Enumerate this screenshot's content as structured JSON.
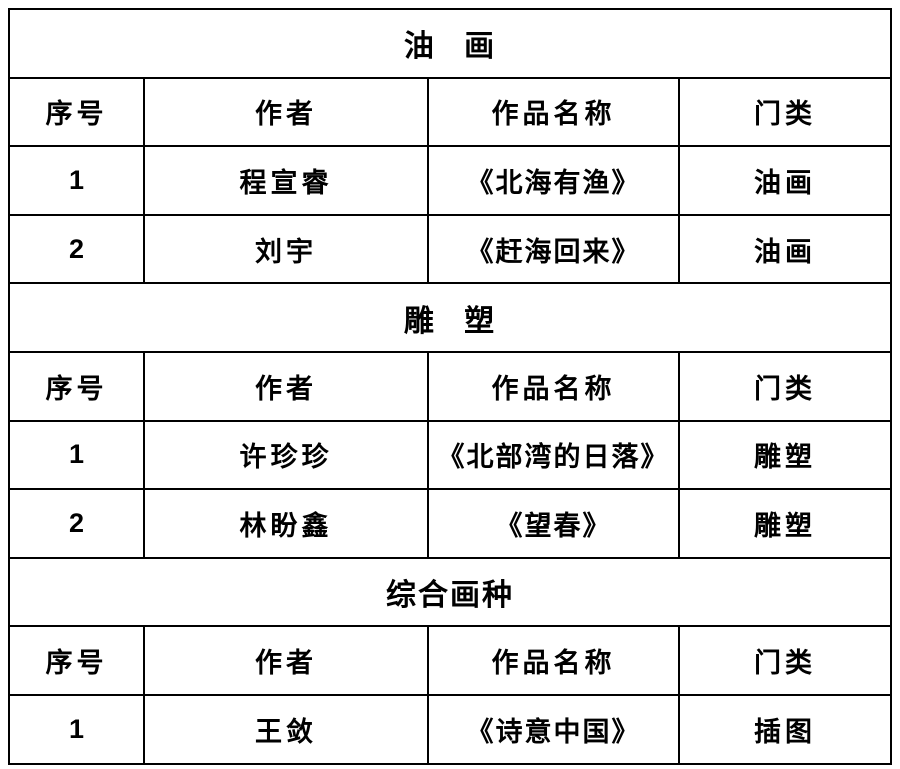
{
  "colors": {
    "text": "#000000",
    "border": "#000000",
    "background": "#ffffff"
  },
  "table": {
    "columns": [
      "序号",
      "作者",
      "作品名称",
      "门类"
    ],
    "sections": [
      {
        "title": "油 画",
        "rows": [
          {
            "no": "1",
            "author": "程宣睿",
            "work": "《北海有渔》",
            "category": "油画"
          },
          {
            "no": "2",
            "author": "刘宇",
            "work": "《赶海回来》",
            "category": "油画"
          }
        ]
      },
      {
        "title": "雕 塑",
        "rows": [
          {
            "no": "1",
            "author": "许珍珍",
            "work": "《北部湾的日落》",
            "category": "雕塑"
          },
          {
            "no": "2",
            "author": "林盼鑫",
            "work": "《望春》",
            "category": "雕塑"
          }
        ]
      },
      {
        "title": "综合画种",
        "rows": [
          {
            "no": "1",
            "author": "王敛",
            "work": "《诗意中国》",
            "category": "插图"
          }
        ]
      }
    ]
  }
}
